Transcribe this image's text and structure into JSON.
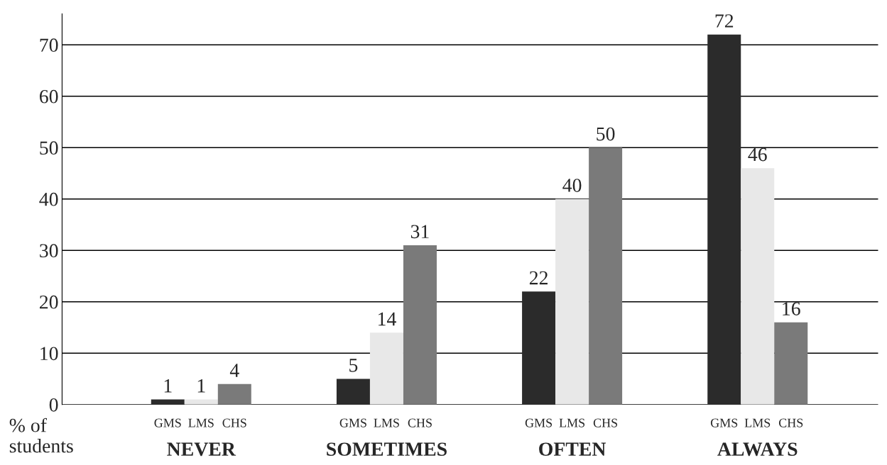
{
  "chart_data": {
    "type": "bar",
    "ylabel": "% of\nstudents",
    "categories": [
      "NEVER",
      "SOMETIMES",
      "OFTEN",
      "ALWAYS"
    ],
    "series": [
      {
        "name": "GMS",
        "color": "#2b2b2b",
        "values": [
          1,
          5,
          22,
          72
        ]
      },
      {
        "name": "LMS",
        "color": "#e8e8e8",
        "values": [
          1,
          14,
          40,
          46
        ]
      },
      {
        "name": "CHS",
        "color": "#7a7a7a",
        "values": [
          4,
          31,
          50,
          16
        ]
      }
    ],
    "ylim": [
      0,
      76
    ],
    "yticks": [
      0,
      10,
      20,
      30,
      40,
      50,
      60,
      70
    ],
    "grid": "y",
    "data_labels": true,
    "legend": false
  }
}
